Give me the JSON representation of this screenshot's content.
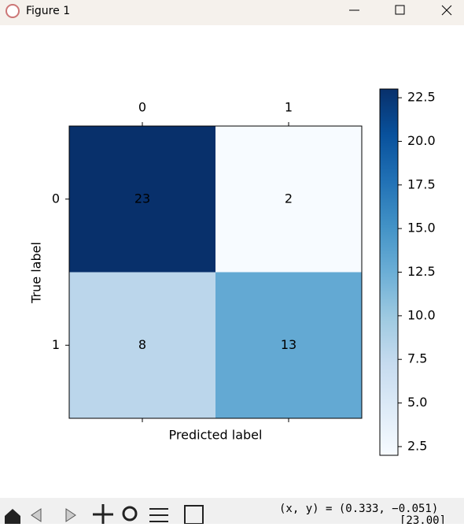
{
  "window": {
    "title": "Figure 1"
  },
  "chart_data": {
    "type": "heatmap",
    "x_label": "Predicted label",
    "y_label": "True label",
    "x_categories": [
      "0",
      "1"
    ],
    "y_categories": [
      "0",
      "1"
    ],
    "values": [
      [
        23,
        2
      ],
      [
        8,
        13
      ]
    ],
    "colormap": "Blues",
    "clim": [
      2,
      23
    ],
    "colorbar_ticks": [
      2.5,
      {
        "value": 5,
        "label": "5.0"
      },
      7.5,
      {
        "value": 10,
        "label": "10.0"
      },
      12.5,
      {
        "value": 15,
        "label": "15.0"
      },
      17.5,
      {
        "value": 20,
        "label": "20.0"
      },
      22.5
    ]
  },
  "status": {
    "coords": "(x, y) = (0.333, −0.051)",
    "value": "[23.00]"
  }
}
